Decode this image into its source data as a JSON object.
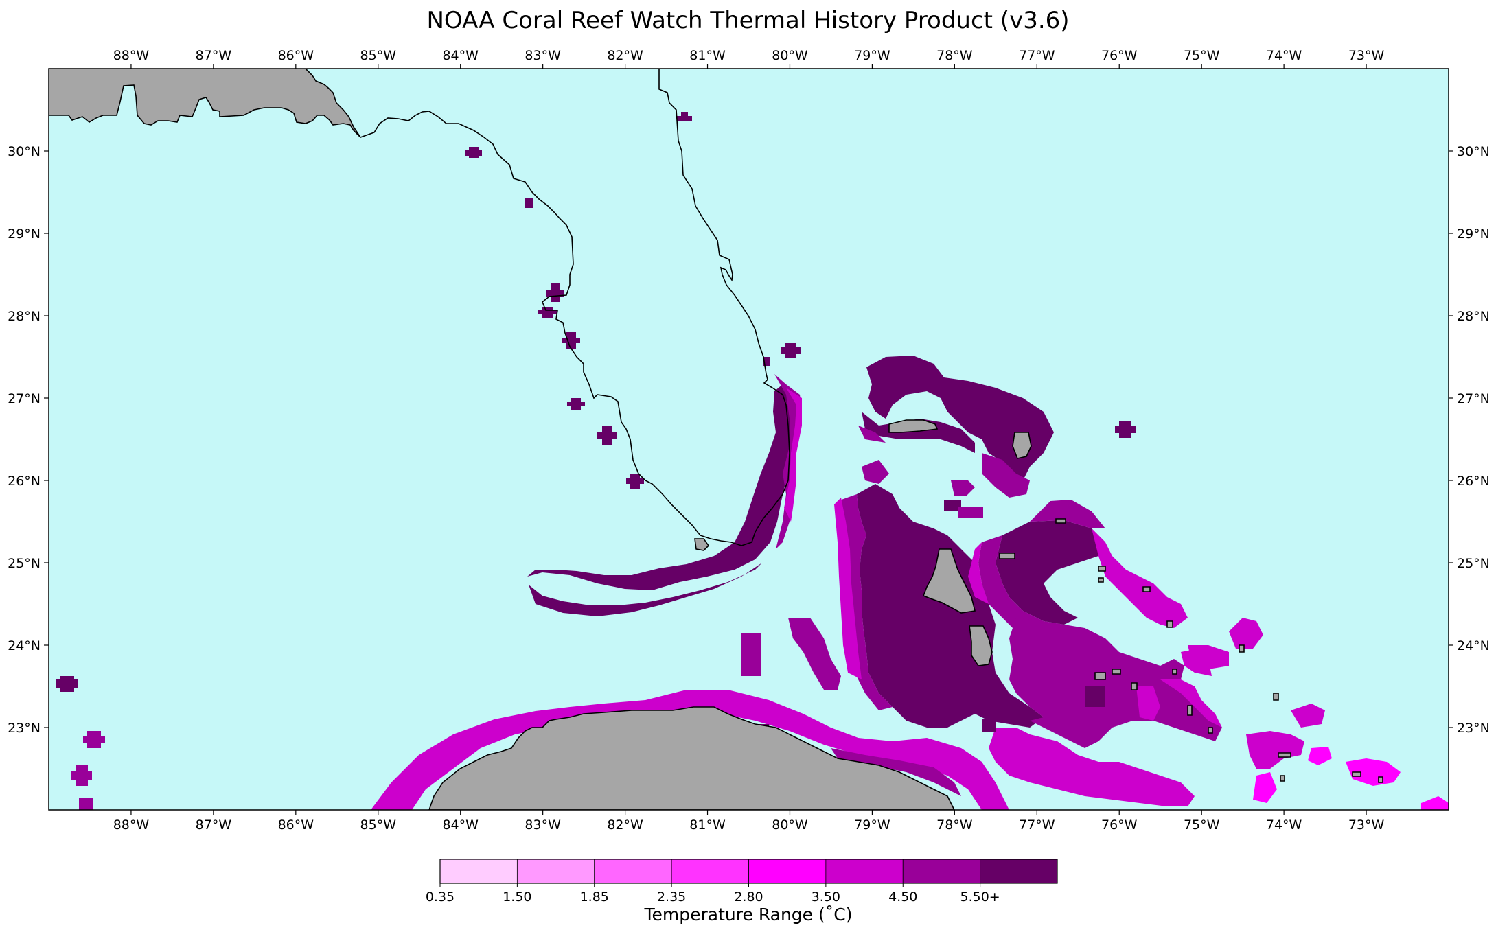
{
  "title": "NOAA Coral Reef Watch Thermal History Product (v3.6)",
  "map": {
    "lon_range": [
      -89,
      -72
    ],
    "lat_range": [
      22,
      31
    ],
    "lon_ticks": [
      -88,
      -87,
      -86,
      -85,
      -84,
      -83,
      -82,
      -81,
      -80,
      -79,
      -78,
      -77,
      -76,
      -75,
      -74,
      -73
    ],
    "lat_ticks": [
      23,
      24,
      25,
      26,
      27,
      28,
      29,
      30
    ],
    "lon_tick_labels": [
      "88°W",
      "87°W",
      "86°W",
      "85°W",
      "84°W",
      "83°W",
      "82°W",
      "81°W",
      "80°W",
      "79°W",
      "78°W",
      "77°W",
      "76°W",
      "75°W",
      "74°W",
      "73°W"
    ],
    "lat_tick_labels": [
      "23°N",
      "24°N",
      "25°N",
      "26°N",
      "27°N",
      "28°N",
      "29°N",
      "30°N"
    ],
    "colors": {
      "ocean": "#c6f8f8",
      "land": "#a6a6a6",
      "coast": "#000000"
    }
  },
  "colorbar": {
    "title": "Temperature Range (˚C)",
    "tick_labels": [
      "0.35",
      "1.50",
      "1.85",
      "2.35",
      "2.80",
      "3.50",
      "4.50",
      "5.50+"
    ],
    "colors": [
      "#ffccff",
      "#ff99ff",
      "#ff66ff",
      "#ff33ff",
      "#ff00ff",
      "#cc00cc",
      "#990099",
      "#660066"
    ]
  }
}
